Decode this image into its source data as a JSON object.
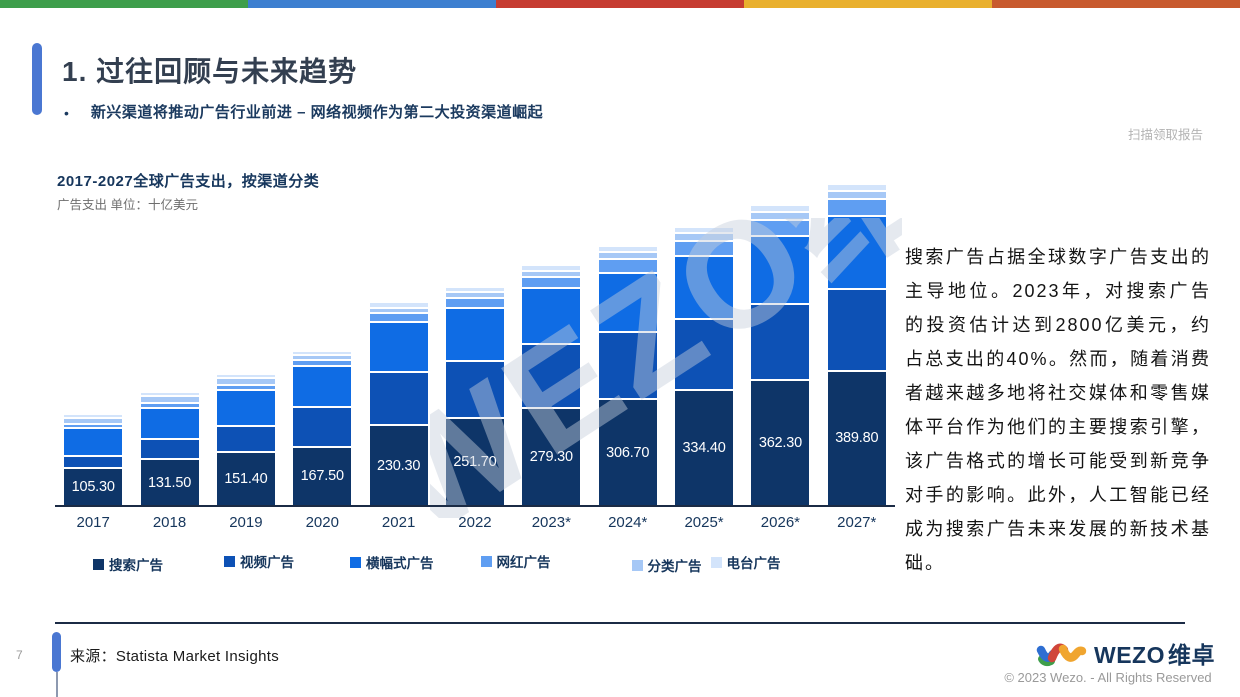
{
  "top_strip_colors": [
    "#3e9e4b",
    "#3d7fd0",
    "#c63c31",
    "#e9b02e",
    "#c85a2e"
  ],
  "header": {
    "title": "1. 过往回顾与未来趋势",
    "bullet_marker": "•",
    "bullet": "新兴渠道将推动广告行业前进 – 网络视频作为第二大投资渠道崛起",
    "scan_hint": "扫描领取报告"
  },
  "chart": {
    "title": "2017-2027全球广告支出，按渠道分类",
    "subtitle": "广告支出 单位：十亿美元"
  },
  "chart_data": {
    "type": "bar",
    "stacked": true,
    "title": "2017-2027全球广告支出，按渠道分类",
    "unit": "十亿美元",
    "ylim": [
      0,
      950
    ],
    "grid": false,
    "legend_position": "bottom",
    "categories": [
      "2017",
      "2018",
      "2019",
      "2020",
      "2021",
      "2022",
      "2023*",
      "2024*",
      "2025*",
      "2026*",
      "2027*"
    ],
    "series": [
      {
        "name": "搜索广告",
        "color": "#0e3568",
        "values": [
          105.3,
          131.5,
          151.4,
          167.5,
          230.3,
          251.7,
          279.3,
          306.7,
          334.4,
          362.3,
          389.8
        ]
      },
      {
        "name": "视频广告",
        "color": "#0d51b5",
        "values": [
          30,
          52,
          72,
          111,
          150,
          160,
          183,
          190,
          202,
          217,
          233
        ]
      },
      {
        "name": "横幅式广告",
        "color": "#0f6ce4",
        "values": [
          76,
          87,
          97,
          114,
          139,
          149,
          157,
          168,
          178,
          194,
          208
        ]
      },
      {
        "name": "网红广告",
        "color": "#5f9ef2",
        "values": [
          5,
          7,
          10,
          12,
          21,
          24,
          26,
          33,
          38,
          41,
          44
        ]
      },
      {
        "name": "分类广告",
        "color": "#a6c8f6",
        "values": [
          12,
          14,
          15,
          9,
          11,
          11,
          14,
          15,
          16,
          17,
          18
        ]
      },
      {
        "name": "电台广告",
        "color": "#d3e4fb",
        "values": [
          5,
          6,
          7,
          6,
          9,
          10,
          11,
          12,
          13,
          14,
          15
        ]
      }
    ],
    "bar_labels": [
      "105.30",
      "131.50",
      "151.40",
      "167.50",
      "230.30",
      "251.70",
      "279.30",
      "306.70",
      "334.40",
      "362.30",
      "389.80"
    ],
    "bar_labels_series": "搜索广告"
  },
  "side_text": "搜索广告占据全球数字广告支出的主导地位。2023年，对搜索广告的投资估计达到2800亿美元，约占总支出的40%。然而，随着消费者越来越多地将社交媒体和零售媒体平台作为他们的主要搜索引擎，该广告格式的增长可能受到新竞争对手的影响。此外，人工智能已经成为搜索广告未来发展的新技术基础。",
  "watermark": "WEZO维卓",
  "footer": {
    "page_number": "7",
    "source": "来源：Statista Market Insights",
    "brand_en": "WEZO",
    "brand_cn": "维卓",
    "copyright": "© 2023 Wezo. - All Rights Reserved"
  }
}
